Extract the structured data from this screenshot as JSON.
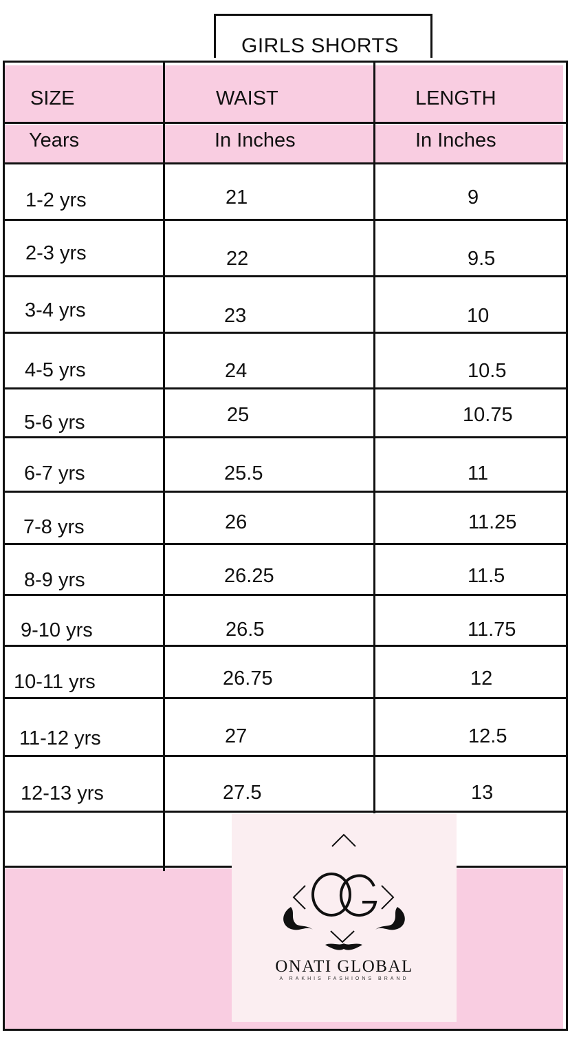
{
  "title": "GIRLS SHORTS",
  "headers": {
    "row1": [
      "SIZE",
      "WAIST",
      "LENGTH"
    ],
    "row2": [
      "Years",
      "In Inches",
      "In Inches"
    ]
  },
  "rows": [
    {
      "size": "1-2 yrs",
      "waist": "21",
      "length": "9"
    },
    {
      "size": "2-3 yrs",
      "waist": "22",
      "length": "9.5"
    },
    {
      "size": "3-4 yrs",
      "waist": "23",
      "length": "10"
    },
    {
      "size": "4-5 yrs",
      "waist": "24",
      "length": "10.5"
    },
    {
      "size": "5-6 yrs",
      "waist": "25",
      "length": "10.75"
    },
    {
      "size": "6-7 yrs",
      "waist": "25.5",
      "length": "11"
    },
    {
      "size": "7-8 yrs",
      "waist": "26",
      "length": "11.25"
    },
    {
      "size": "8-9 yrs",
      "waist": "26.25",
      "length": "11.5"
    },
    {
      "size": "9-10 yrs",
      "waist": "26.5",
      "length": "11.75"
    },
    {
      "size": "10-11 yrs",
      "waist": "26.75",
      "length": "12"
    },
    {
      "size": "11-12 yrs",
      "waist": "27",
      "length": "12.5"
    },
    {
      "size": "12-13 yrs",
      "waist": "27.5",
      "length": "13"
    }
  ],
  "logo": {
    "monogram": "OG",
    "name": "ONATI GLOBAL",
    "tagline": "A RAKHIS FASHIONS BRAND"
  },
  "colors": {
    "header_pink": "#f9cde1",
    "logo_panel": "#fbeef1",
    "line": "#111111"
  }
}
